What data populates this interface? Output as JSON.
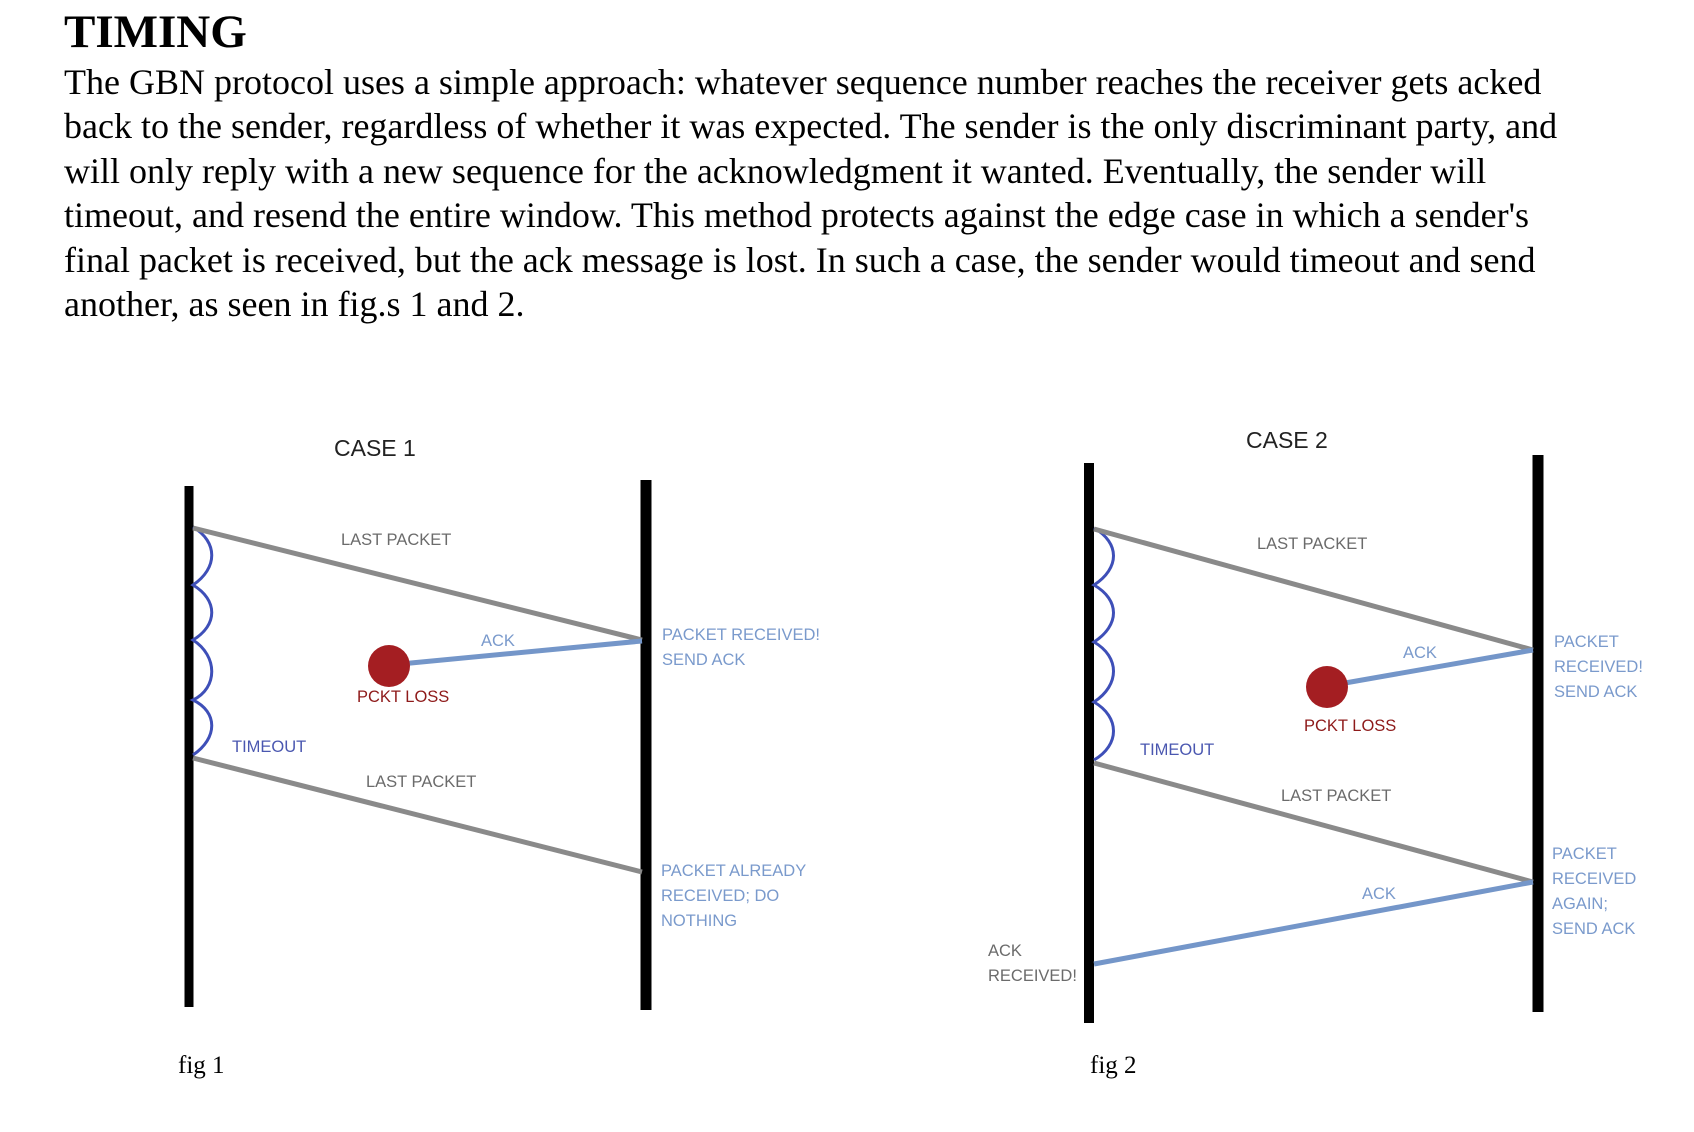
{
  "document": {
    "heading": "TIMING",
    "paragraph_lines": [
      "The GBN protocol uses a simple approach: whatever sequence number reaches the receiver gets acked",
      "back to the sender, regardless of whether it was expected. The sender is the only discriminant party, and",
      "will only reply with a new sequence for the acknowledgment it wanted. Eventually, the sender will",
      "timeout, and resend the entire window. This method protects against the edge case in which a sender's",
      "final packet is received, but the ack message is lost. In such a case, the sender would timeout and send",
      "another, as seen in fig.s 1 and 2."
    ]
  },
  "colors": {
    "timeline": "#000000",
    "packet_line": "#8a8a8a",
    "ack_line": "#7496c9",
    "loss_marker": "#a41e22",
    "timer_wave": "#3e4fb8",
    "label_gray": "#6b6b6b",
    "label_blue": "#7a9acc",
    "label_red": "#8e1a1a",
    "label_timeout": "#4a57b0"
  },
  "figures": {
    "fig1": {
      "title": "CASE 1",
      "caption": "fig 1",
      "labels": {
        "last_packet_1": "LAST PACKET",
        "ack": "ACK",
        "packet_received_line1": "PACKET RECEIVED!",
        "packet_received_line2": "SEND ACK",
        "pckt_loss": "PCKT LOSS",
        "timeout": "TIMEOUT",
        "last_packet_2": "LAST PACKET",
        "already_line1": "PACKET ALREADY",
        "already_line2": "RECEIVED; DO",
        "already_line3": "NOTHING"
      }
    },
    "fig2": {
      "title": "CASE 2",
      "caption": "fig 2",
      "labels": {
        "last_packet_1": "LAST PACKET",
        "ack_1": "ACK",
        "received_line1": "PACKET",
        "received_line2": "RECEIVED!",
        "received_line3": "SEND ACK",
        "pckt_loss": "PCKT LOSS",
        "timeout": "TIMEOUT",
        "last_packet_2": "LAST PACKET",
        "again_line1": "PACKET",
        "again_line2": "RECEIVED",
        "again_line3": "AGAIN;",
        "again_line4": "SEND ACK",
        "ack_2": "ACK",
        "ack_received_line1": "ACK",
        "ack_received_line2": "RECEIVED!"
      }
    }
  }
}
